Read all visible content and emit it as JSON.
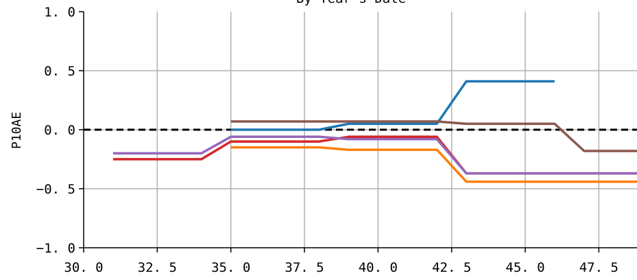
{
  "chart_data": {
    "type": "line",
    "title": "By Year's Date",
    "xlabel": "",
    "ylabel": "P10AE",
    "xlim": [
      30.0,
      48.9
    ],
    "ylim": [
      -1.0,
      1.0
    ],
    "x_ticks": [
      "30. 0",
      "32. 5",
      "35. 0",
      "37. 5",
      "40. 0",
      "42. 5",
      "45. 0",
      "47. 5"
    ],
    "y_ticks": [
      "1. 0",
      "0. 5",
      "0. 0",
      "−0. 5",
      "−1. 0"
    ],
    "grid": true,
    "reference_line": {
      "y": 0.0,
      "style": "dashed",
      "color": "#000000"
    },
    "series": [
      {
        "color": "#1f77b4",
        "points": [
          [
            35,
            0.0
          ],
          [
            38,
            0.0
          ],
          [
            39,
            0.05
          ],
          [
            42,
            0.05
          ],
          [
            43,
            0.41
          ],
          [
            46,
            0.41
          ]
        ]
      },
      {
        "color": "#ff7f0e",
        "points": [
          [
            35,
            -0.15
          ],
          [
            38,
            -0.15
          ],
          [
            39,
            -0.17
          ],
          [
            42,
            -0.17
          ],
          [
            43,
            -0.44
          ],
          [
            48.9,
            -0.44
          ]
        ]
      },
      {
        "color": "#d62728",
        "points": [
          [
            31,
            -0.25
          ],
          [
            34,
            -0.25
          ],
          [
            35,
            -0.1
          ],
          [
            38,
            -0.1
          ],
          [
            39,
            -0.06
          ],
          [
            42,
            -0.06
          ],
          [
            43,
            -0.37
          ],
          [
            48.9,
            -0.37
          ]
        ]
      },
      {
        "color": "#8c564b",
        "points": [
          [
            35,
            0.07
          ],
          [
            42,
            0.07
          ],
          [
            43,
            0.05
          ],
          [
            46,
            0.05
          ],
          [
            47,
            -0.18
          ],
          [
            48.9,
            -0.18
          ]
        ]
      },
      {
        "color": "#9467bd",
        "points": [
          [
            31,
            -0.2
          ],
          [
            34,
            -0.2
          ],
          [
            35,
            -0.06
          ],
          [
            38,
            -0.06
          ],
          [
            39,
            -0.08
          ],
          [
            42,
            -0.08
          ],
          [
            43,
            -0.37
          ],
          [
            48.9,
            -0.37
          ]
        ]
      }
    ]
  }
}
